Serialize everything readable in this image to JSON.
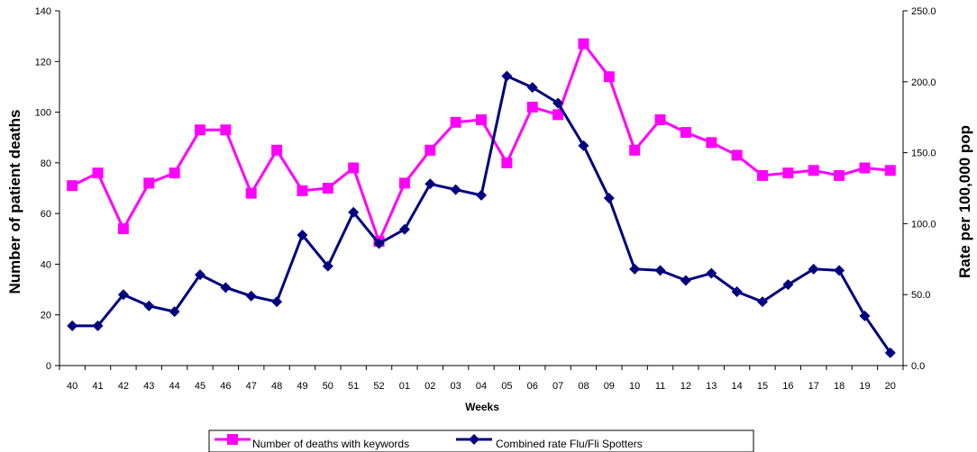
{
  "chart_data": {
    "type": "line",
    "xlabel": "Weeks",
    "ylabel_left": "Number of patient deaths",
    "ylabel_right": "Rate per 100,000 pop",
    "categories": [
      "40",
      "41",
      "42",
      "43",
      "44",
      "45",
      "46",
      "47",
      "48",
      "49",
      "50",
      "51",
      "52",
      "01",
      "02",
      "03",
      "04",
      "05",
      "06",
      "07",
      "08",
      "09",
      "10",
      "11",
      "12",
      "13",
      "14",
      "15",
      "16",
      "17",
      "18",
      "19",
      "20"
    ],
    "y_left": {
      "lim": [
        0,
        140
      ],
      "ticks": [
        "0",
        "20",
        "40",
        "60",
        "80",
        "100",
        "120",
        "140"
      ]
    },
    "y_right": {
      "lim": [
        0,
        250
      ],
      "ticks": [
        "0.0",
        "50.0",
        "100.0",
        "150.0",
        "200.0",
        "250.0"
      ]
    },
    "grid": false,
    "legend_position": "bottom",
    "series": [
      {
        "name": "Number of deaths with keywords",
        "axis": "left",
        "color": "#FF00FF",
        "marker": "square",
        "values": [
          71,
          76,
          54,
          72,
          76,
          93,
          93,
          68,
          85,
          69,
          70,
          78,
          49,
          72,
          85,
          96,
          97,
          80,
          102,
          99,
          127,
          114,
          85,
          97,
          92,
          88,
          83,
          75,
          76,
          77,
          75,
          78,
          77
        ]
      },
      {
        "name": "Combined rate Flu/Fli Spotters",
        "axis": "right",
        "color": "#000080",
        "marker": "diamond",
        "values": [
          28,
          28,
          50,
          42,
          38,
          64,
          55,
          49,
          45,
          92,
          70,
          108,
          86,
          96,
          128,
          124,
          120,
          204,
          196,
          185,
          155,
          118,
          68,
          67,
          60,
          65,
          52,
          45,
          57,
          68,
          67,
          35,
          9
        ]
      }
    ]
  }
}
